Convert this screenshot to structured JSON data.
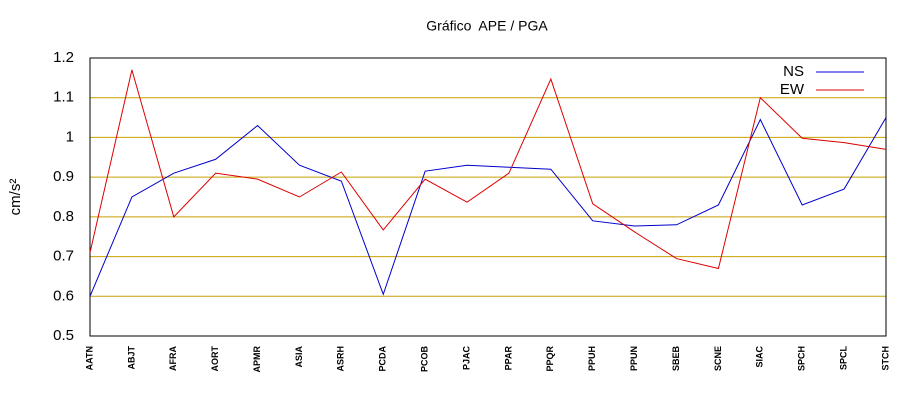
{
  "chart_data": {
    "type": "line",
    "title": "Gráfico  APE / PGA",
    "y_label": "cm/s²",
    "categories": [
      "AATN",
      "ABJT",
      "AFRA",
      "AORT",
      "APMR",
      "ASIA",
      "ASRH",
      "PCDA",
      "PCOB",
      "PJAC",
      "PPAR",
      "PPQR",
      "PPUH",
      "PPUN",
      "SBEB",
      "SCNE",
      "SIAC",
      "SPCH",
      "SPCL",
      "STCH"
    ],
    "series": [
      {
        "name": "NS",
        "color": "#0000cc",
        "values": [
          0.6,
          0.85,
          0.91,
          0.945,
          1.03,
          0.93,
          0.89,
          0.605,
          0.915,
          0.93,
          0.925,
          0.92,
          0.79,
          0.777,
          0.78,
          0.83,
          1.045,
          0.83,
          0.87,
          1.05
        ]
      },
      {
        "name": "EW",
        "color": "#dd0000",
        "values": [
          0.71,
          1.17,
          0.8,
          0.91,
          0.895,
          0.85,
          0.913,
          0.767,
          0.895,
          0.837,
          0.91,
          1.147,
          0.833,
          0.762,
          0.695,
          0.67,
          1.1,
          0.998,
          0.987,
          0.97
        ]
      }
    ],
    "ylim": [
      0.5,
      1.2
    ],
    "yticks": [
      0.5,
      0.6,
      0.7,
      0.8,
      0.9,
      1,
      1.1,
      1.2
    ],
    "grid": true,
    "grid_color": "#c8a000",
    "legend": "top-right"
  }
}
